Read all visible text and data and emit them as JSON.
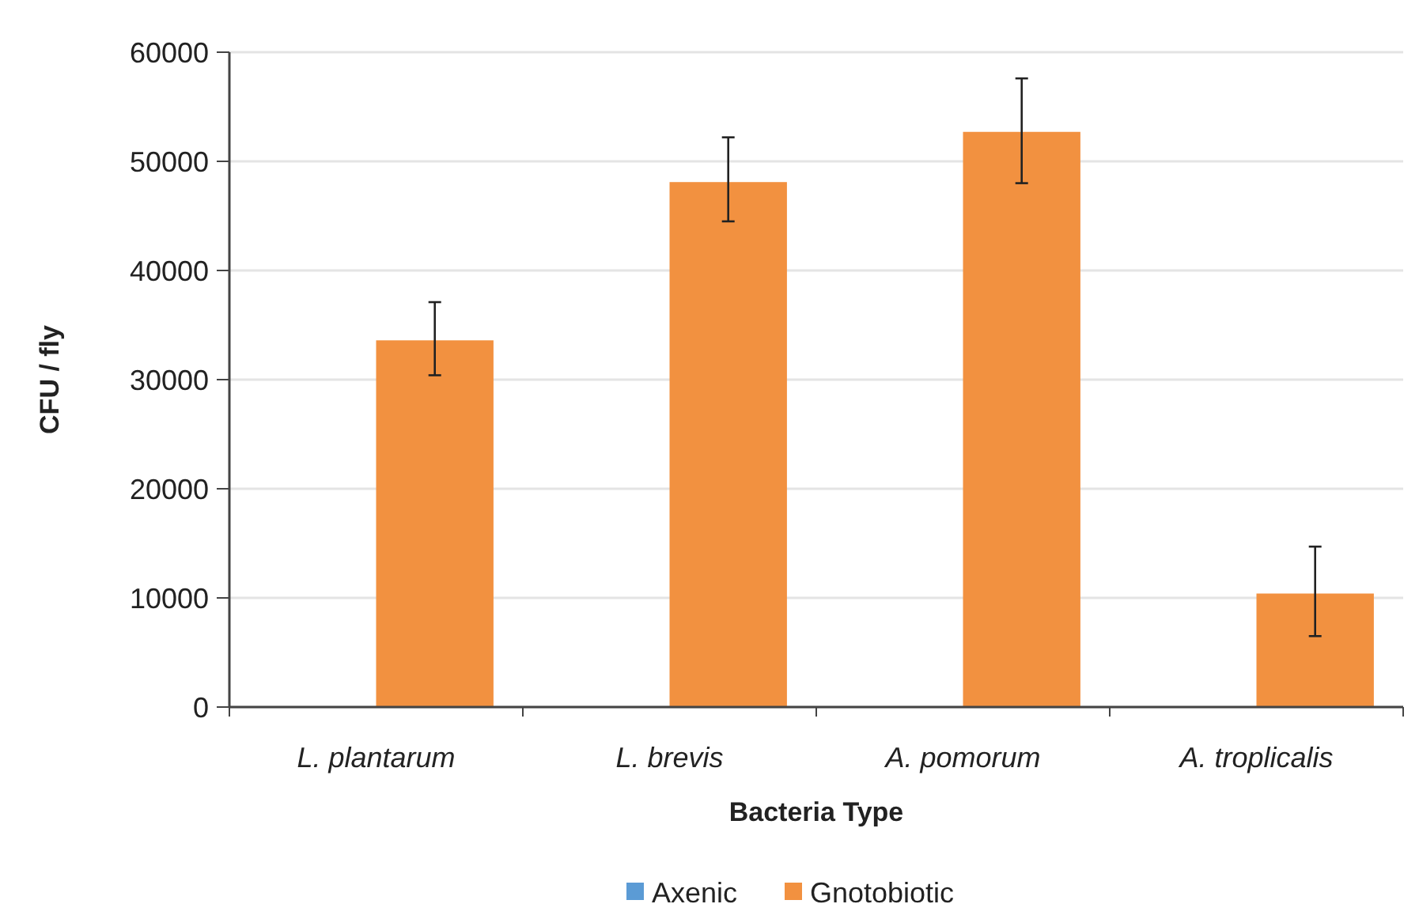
{
  "chart_data": {
    "type": "bar",
    "xlabel": "Bacteria Type",
    "ylabel": "CFU / fly",
    "categories": [
      "L. plantarum",
      "L. brevis",
      "A. pomorum",
      "A. troplicalis"
    ],
    "series": [
      {
        "name": "Axenic",
        "color": "#5b9bd5",
        "values": [
          0,
          0,
          0,
          0
        ]
      },
      {
        "name": "Gnotobiotic",
        "color": "#f29140",
        "values": [
          33600,
          48100,
          52700,
          10400
        ],
        "errors": [
          [
            30400,
            37100
          ],
          [
            44500,
            52200
          ],
          [
            48000,
            57600
          ],
          [
            6500,
            14700
          ]
        ]
      }
    ],
    "ylim": [
      0,
      60000
    ],
    "yticks": [
      0,
      10000,
      20000,
      30000,
      40000,
      50000,
      60000
    ],
    "grid": "y",
    "legend": "bottom"
  }
}
